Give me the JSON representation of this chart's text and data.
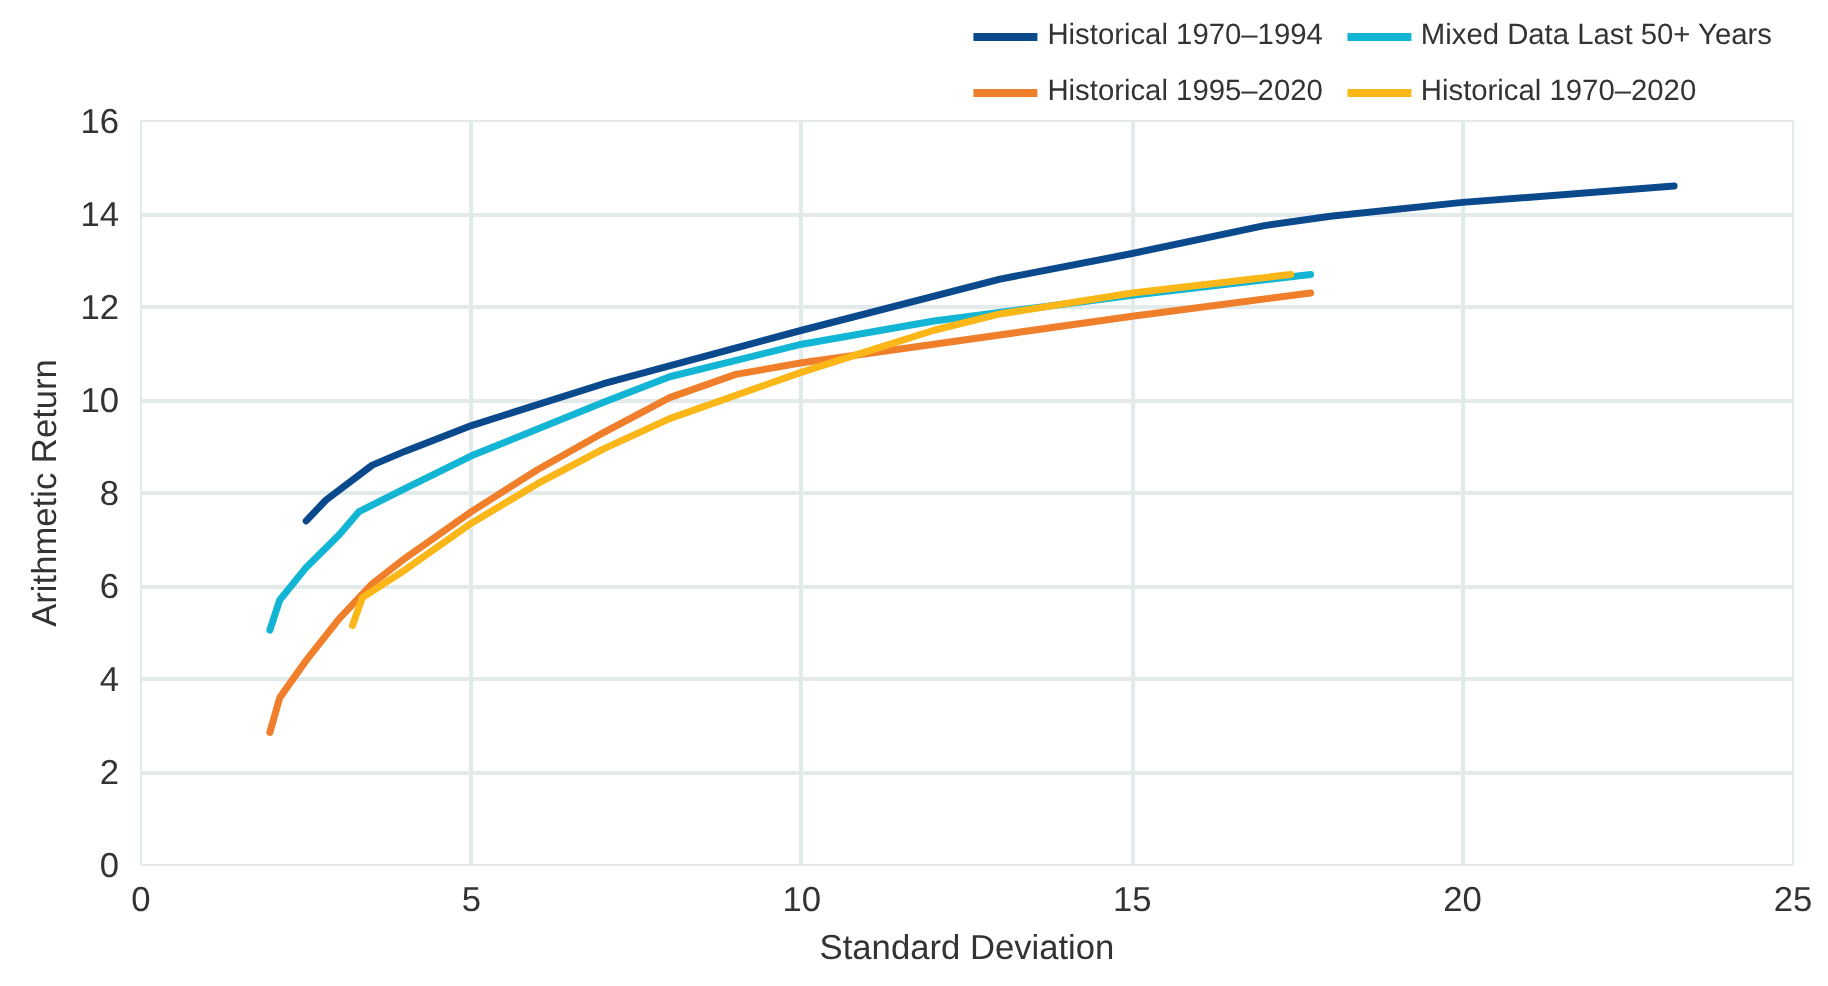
{
  "chart_data": {
    "type": "line",
    "xlabel": "Standard Deviation",
    "ylabel": "Arithmetic Return",
    "xlim": [
      0,
      25
    ],
    "ylim": [
      0,
      16
    ],
    "xticks": [
      0,
      5,
      10,
      15,
      20,
      25
    ],
    "yticks": [
      0,
      2,
      4,
      6,
      8,
      10,
      12,
      14,
      16
    ],
    "grid": true,
    "legend": "top right",
    "line_style": "solid",
    "series": [
      {
        "name": "Historical 1970–1994",
        "color": "#0a4a8c",
        "x": [
          2.5,
          2.8,
          3.5,
          4,
          5,
          7,
          10,
          13,
          15,
          17,
          18,
          20,
          23.2
        ],
        "values": [
          7.4,
          7.85,
          8.6,
          8.9,
          9.45,
          10.35,
          11.5,
          12.6,
          13.15,
          13.75,
          13.95,
          14.25,
          14.6
        ]
      },
      {
        "name": "Historical 1995–2020",
        "color": "#f07f2b",
        "x": [
          1.95,
          2.1,
          2.5,
          3,
          3.5,
          4,
          5,
          6,
          7,
          8,
          9,
          10,
          12,
          15,
          17.7
        ],
        "values": [
          2.85,
          3.6,
          4.4,
          5.3,
          6.05,
          6.6,
          7.6,
          8.5,
          9.3,
          10.05,
          10.55,
          10.8,
          11.2,
          11.8,
          12.3
        ]
      },
      {
        "name": "Mixed Data Last 50+ Years",
        "color": "#12b5d4",
        "x": [
          1.95,
          2.1,
          2.5,
          3,
          3.3,
          4,
          5,
          7,
          8,
          10,
          12,
          15,
          17.7
        ],
        "values": [
          5.05,
          5.7,
          6.4,
          7.1,
          7.6,
          8.1,
          8.8,
          9.95,
          10.5,
          11.2,
          11.7,
          12.25,
          12.7
        ]
      },
      {
        "name": "Historical 1970–2020",
        "color": "#fbb718",
        "x": [
          3.2,
          3.35,
          4,
          5,
          6,
          7,
          8,
          10,
          11,
          12,
          13,
          15,
          17.4
        ],
        "values": [
          5.15,
          5.75,
          6.35,
          7.35,
          8.2,
          8.95,
          9.6,
          10.6,
          11.05,
          11.5,
          11.85,
          12.3,
          12.7
        ]
      }
    ]
  }
}
